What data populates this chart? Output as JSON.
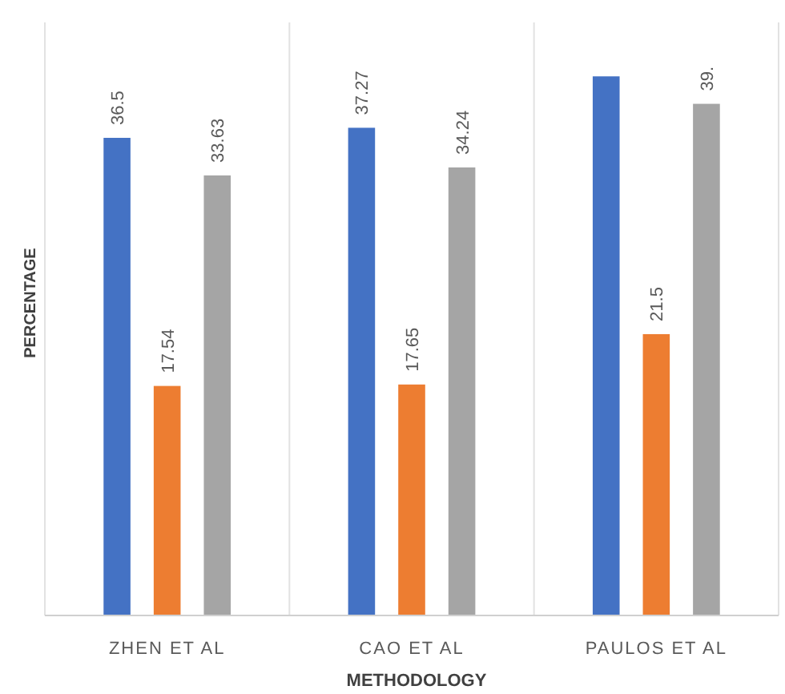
{
  "chart_data": {
    "type": "bar",
    "xlabel": "METHODOLOGY",
    "ylabel": "PERCENTAGE",
    "categories": [
      "ZHEN ET AL",
      "CAO ET AL",
      "PAULOS ET AL"
    ],
    "grid": "x",
    "series": [
      {
        "color": "#4472c4",
        "values": [
          36.5,
          37.27,
          41.2
        ],
        "value_labels": [
          "36.5",
          "37.27",
          null
        ]
      },
      {
        "color": "#ed7d31",
        "values": [
          17.54,
          17.65,
          21.5
        ],
        "value_labels": [
          "17.54",
          "17.65",
          "21.5"
        ]
      },
      {
        "color": "#a5a5a5",
        "values": [
          33.63,
          34.24,
          39.1
        ],
        "value_labels": [
          "33.63",
          "34.24",
          "39."
        ]
      }
    ]
  }
}
